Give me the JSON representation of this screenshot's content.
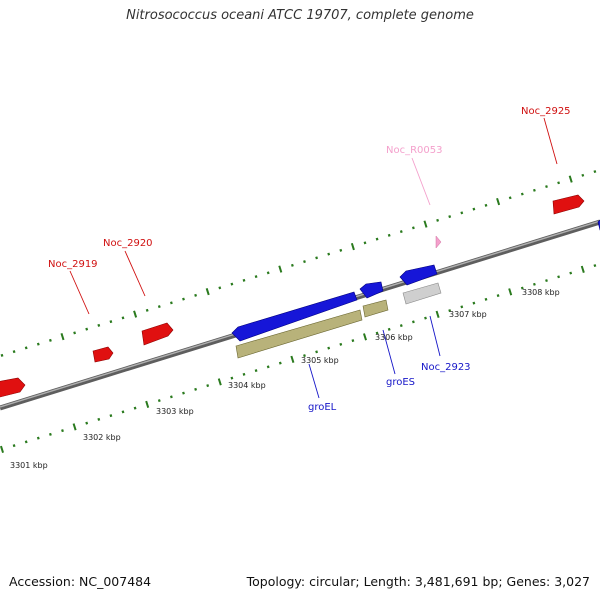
{
  "title": "Nitrosococcus oceani ATCC 19707, complete genome",
  "footer": {
    "accession": "Accession: NC_007484",
    "stats": "Topology: circular; Length: 3,481,691 bp; Genes: 3,027"
  },
  "colors": {
    "forward_gene": "#e01010",
    "reverse_gene": "#1616d8",
    "cds": "#b8b27a",
    "rna": "#f4a0cc",
    "pseudo": "#cfcfcf",
    "ticks": "#2a7a1e",
    "backbone": "#7a7a7a"
  },
  "scale": {
    "labels": [
      "3301 kbp",
      "3302 kbp",
      "3303 kbp",
      "3304 kbp",
      "3305 kbp",
      "3306 kbp",
      "3307 kbp",
      "3308 kbp"
    ]
  },
  "gene_labels": {
    "noc_2919": "Noc_2919",
    "noc_2920": "Noc_2920",
    "noc_r0053": "Noc_R0053",
    "noc_2925": "Noc_2925",
    "groel": "groEL",
    "groes": "groES",
    "noc_2923": "Noc_2923"
  }
}
